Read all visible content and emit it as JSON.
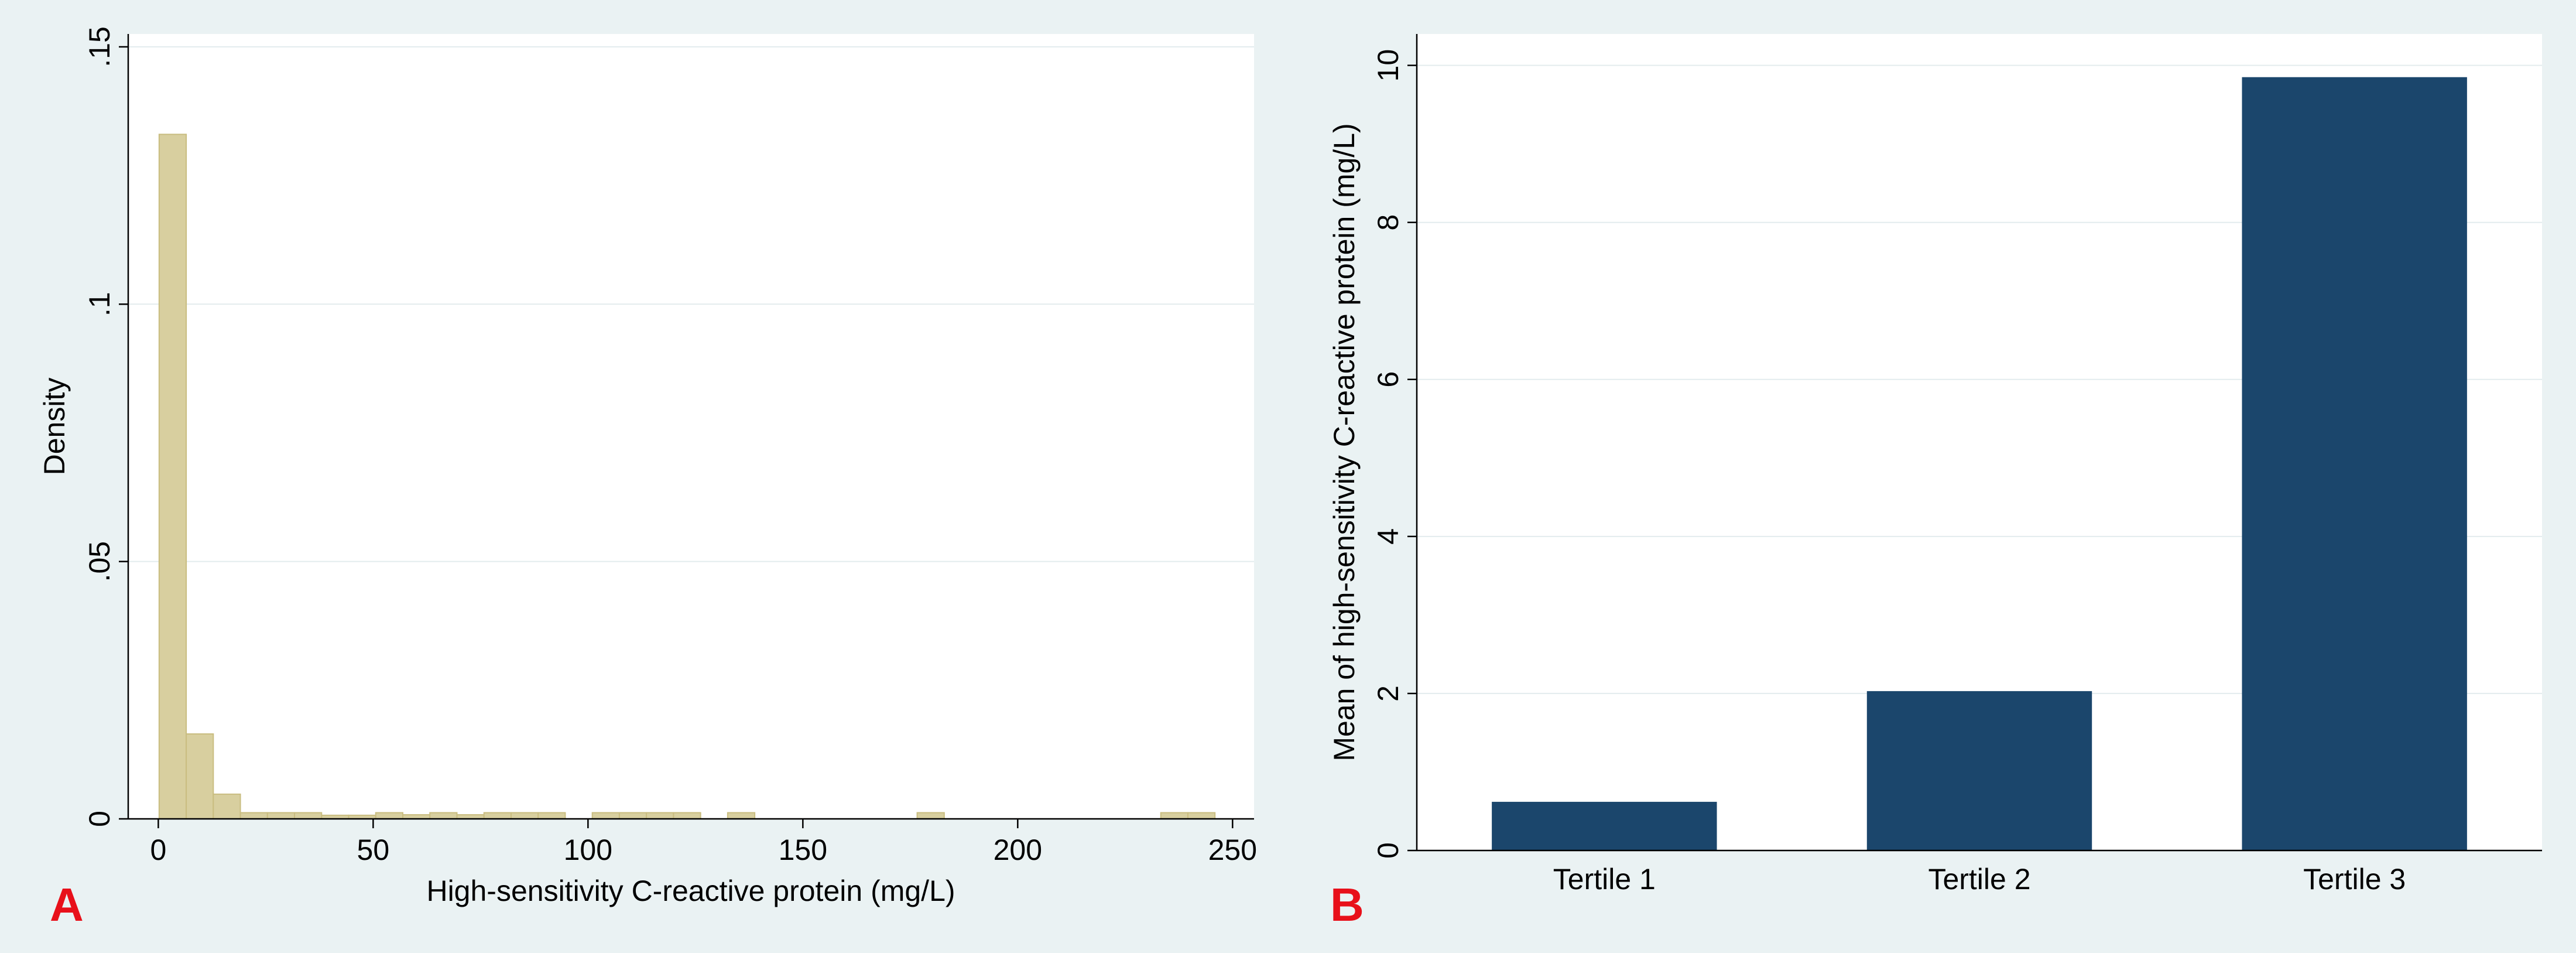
{
  "chart_data": [
    {
      "type": "bar",
      "panel_label": "A",
      "title": "",
      "xlabel": "High-sensitivity C-reactive protein (mg/L)",
      "ylabel": "Density",
      "xlim": [
        -7,
        255
      ],
      "ylim": [
        0,
        0.1525
      ],
      "xticks": [
        0,
        50,
        100,
        150,
        200,
        250
      ],
      "xtick_labels": [
        "0",
        "50",
        "100",
        "150",
        "200",
        "250"
      ],
      "yticks": [
        0,
        0.05,
        0.1,
        0.15
      ],
      "ytick_labels": [
        "0",
        ".05",
        ".1",
        ".15"
      ],
      "grid": true,
      "legend": "none",
      "bar_color": "#d8cf9f",
      "bar_edge_color": "#c9bd80",
      "bins": [
        {
          "x0": 0.2,
          "x1": 6.5,
          "y": 0.133
        },
        {
          "x0": 6.5,
          "x1": 12.8,
          "y": 0.0165
        },
        {
          "x0": 12.8,
          "x1": 19.1,
          "y": 0.0048
        },
        {
          "x0": 19.1,
          "x1": 25.4,
          "y": 0.0012
        },
        {
          "x0": 25.4,
          "x1": 31.7,
          "y": 0.0012
        },
        {
          "x0": 31.7,
          "x1": 38.0,
          "y": 0.0012
        },
        {
          "x0": 38.0,
          "x1": 44.3,
          "y": 0.0007
        },
        {
          "x0": 44.3,
          "x1": 50.6,
          "y": 0.0007
        },
        {
          "x0": 50.6,
          "x1": 56.9,
          "y": 0.0012
        },
        {
          "x0": 56.9,
          "x1": 63.2,
          "y": 0.0008
        },
        {
          "x0": 63.2,
          "x1": 69.5,
          "y": 0.0012
        },
        {
          "x0": 69.5,
          "x1": 75.8,
          "y": 0.0008
        },
        {
          "x0": 75.8,
          "x1": 82.1,
          "y": 0.0012
        },
        {
          "x0": 82.1,
          "x1": 88.4,
          "y": 0.0012
        },
        {
          "x0": 88.4,
          "x1": 94.7,
          "y": 0.0012
        },
        {
          "x0": 101.0,
          "x1": 107.3,
          "y": 0.0012
        },
        {
          "x0": 107.3,
          "x1": 113.6,
          "y": 0.0012
        },
        {
          "x0": 113.6,
          "x1": 119.9,
          "y": 0.0012
        },
        {
          "x0": 119.9,
          "x1": 126.2,
          "y": 0.0012
        },
        {
          "x0": 132.5,
          "x1": 138.8,
          "y": 0.0012
        },
        {
          "x0": 176.6,
          "x1": 182.9,
          "y": 0.0012
        },
        {
          "x0": 233.3,
          "x1": 239.6,
          "y": 0.0012
        },
        {
          "x0": 239.6,
          "x1": 245.9,
          "y": 0.0012
        }
      ]
    },
    {
      "type": "bar",
      "panel_label": "B",
      "title": "",
      "xlabel": "",
      "ylabel": "Mean of high-sensitivity C-reactive protein (mg/L)",
      "categories": [
        "Tertile 1",
        "Tertile 2",
        "Tertile 3"
      ],
      "values": [
        0.62,
        2.03,
        9.85
      ],
      "ylim": [
        0,
        10.4
      ],
      "yticks": [
        0,
        2,
        4,
        6,
        8,
        10
      ],
      "ytick_labels": [
        "0",
        "2",
        "4",
        "6",
        "8",
        "10"
      ],
      "grid": true,
      "legend": "none",
      "bar_color": "#1b466c"
    }
  ],
  "panel_label_color": "#e8101a"
}
